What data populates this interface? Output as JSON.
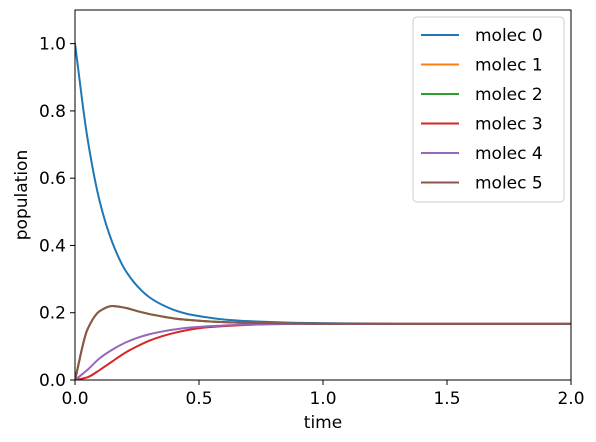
{
  "chart_data": {
    "type": "line",
    "title": "",
    "xlabel": "time",
    "ylabel": "population",
    "xlim": [
      0.0,
      2.0
    ],
    "ylim": [
      0.0,
      1.1
    ],
    "xticks": [
      0.0,
      0.5,
      1.0,
      1.5,
      2.0
    ],
    "xtick_labels": [
      "0.0",
      "0.5",
      "1.0",
      "1.5",
      "2.0"
    ],
    "yticks": [
      0.0,
      0.2,
      0.4,
      0.6,
      0.8,
      1.0
    ],
    "ytick_labels": [
      "0.0",
      "0.2",
      "0.4",
      "0.6",
      "0.8",
      "1.0"
    ],
    "grid": false,
    "legend_position": "top-right",
    "x": [
      0.0,
      0.05,
      0.1,
      0.15,
      0.2,
      0.25,
      0.3,
      0.35,
      0.4,
      0.45,
      0.5,
      0.6,
      0.7,
      0.8,
      0.9,
      1.0,
      1.2,
      1.4,
      1.6,
      1.8,
      2.0
    ],
    "series": [
      {
        "name": "molec 0",
        "color": "#1f77b4",
        "values": [
          1.0,
          0.72,
          0.53,
          0.41,
          0.33,
          0.28,
          0.246,
          0.224,
          0.208,
          0.197,
          0.19,
          0.18,
          0.175,
          0.172,
          0.17,
          0.169,
          0.168,
          0.167,
          0.167,
          0.167,
          0.167
        ]
      },
      {
        "name": "molec 1",
        "color": "#ff7f0e",
        "values": [
          0.0,
          0.15,
          0.205,
          0.22,
          0.215,
          0.205,
          0.196,
          0.189,
          0.183,
          0.179,
          0.176,
          0.172,
          0.17,
          0.169,
          0.168,
          0.167,
          0.167,
          0.167,
          0.167,
          0.167,
          0.167
        ]
      },
      {
        "name": "molec 2",
        "color": "#2ca02c",
        "values": [
          0.0,
          0.15,
          0.205,
          0.22,
          0.215,
          0.205,
          0.196,
          0.189,
          0.183,
          0.179,
          0.176,
          0.172,
          0.17,
          0.169,
          0.168,
          0.167,
          0.167,
          0.167,
          0.167,
          0.167,
          0.167
        ]
      },
      {
        "name": "molec 3",
        "color": "#d62728",
        "values": [
          0.0,
          0.008,
          0.03,
          0.055,
          0.08,
          0.1,
          0.117,
          0.13,
          0.14,
          0.148,
          0.154,
          0.16,
          0.164,
          0.166,
          0.167,
          0.167,
          0.167,
          0.167,
          0.167,
          0.167,
          0.167
        ]
      },
      {
        "name": "molec 4",
        "color": "#9467bd",
        "values": [
          0.0,
          0.03,
          0.065,
          0.09,
          0.11,
          0.125,
          0.136,
          0.144,
          0.15,
          0.155,
          0.158,
          0.162,
          0.165,
          0.166,
          0.167,
          0.167,
          0.167,
          0.167,
          0.167,
          0.167,
          0.167
        ]
      },
      {
        "name": "molec 5",
        "color": "#8c564b",
        "values": [
          0.0,
          0.15,
          0.205,
          0.22,
          0.215,
          0.205,
          0.196,
          0.189,
          0.183,
          0.179,
          0.176,
          0.172,
          0.17,
          0.169,
          0.168,
          0.167,
          0.167,
          0.167,
          0.167,
          0.167,
          0.167
        ]
      }
    ]
  }
}
